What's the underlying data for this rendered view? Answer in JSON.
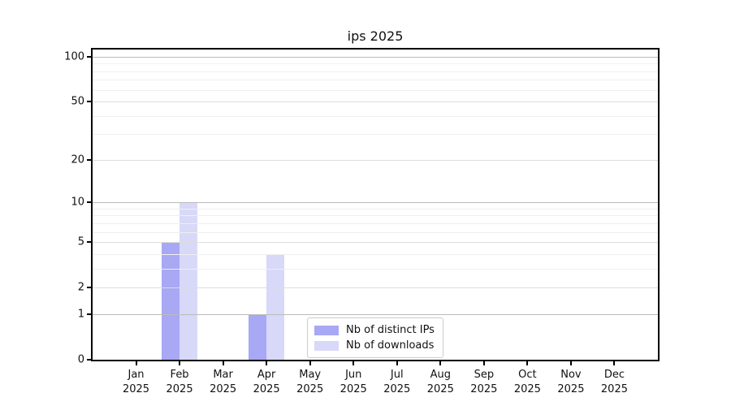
{
  "chart_data": {
    "type": "bar",
    "title": "ips 2025",
    "categories": [
      "Jan",
      "Feb",
      "Mar",
      "Apr",
      "May",
      "Jun",
      "Jul",
      "Aug",
      "Sep",
      "Oct",
      "Nov",
      "Dec"
    ],
    "category_year": "2025",
    "series": [
      {
        "name": "Nb of distinct IPs",
        "color": "#a8a8f5",
        "values": [
          0,
          5,
          0,
          1,
          0,
          0,
          0,
          0,
          0,
          0,
          0,
          0
        ]
      },
      {
        "name": "Nb of downloads",
        "color": "#d8d8f8",
        "values": [
          0,
          10,
          0,
          4,
          0,
          0,
          0,
          0,
          0,
          0,
          0,
          0
        ]
      }
    ],
    "yscale": "log1p",
    "ylim": [
      0,
      112
    ],
    "ytick_values": [
      0,
      1,
      2,
      5,
      10,
      20,
      50,
      100
    ],
    "ytick_minor": [
      3,
      4,
      6,
      7,
      8,
      9,
      30,
      40,
      60,
      70,
      80,
      90
    ],
    "grid": true,
    "legend_position": "lower-center",
    "colors": {
      "axis": "#000000",
      "grid_decade": "#bbbbbb",
      "grid_major": "#dddddd",
      "grid_minor": "#efefef",
      "background": "#ffffff"
    }
  }
}
